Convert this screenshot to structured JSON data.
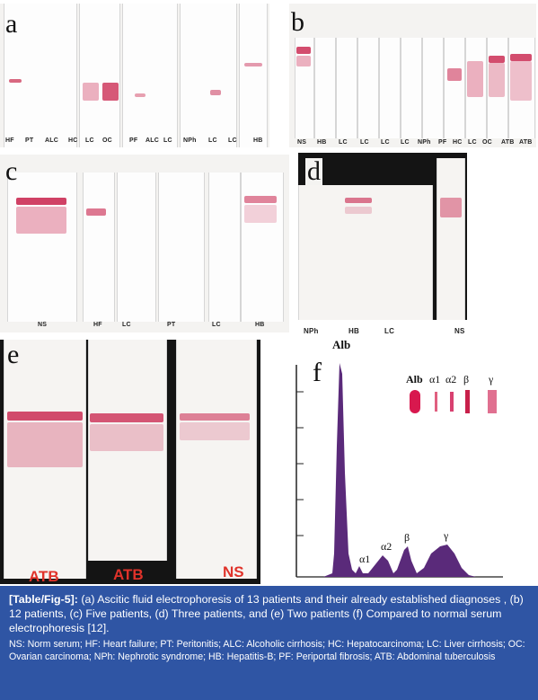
{
  "panels": {
    "a": {
      "letter": "a",
      "lanes": [
        "HF",
        "PT",
        "ALC",
        "HC",
        "LC",
        "OC",
        "PF",
        "ALC",
        "LC",
        "NPh",
        "LC",
        "LC",
        "HB"
      ]
    },
    "b": {
      "letter": "b",
      "lanes": [
        "NS",
        "HB",
        "LC",
        "LC",
        "LC",
        "LC",
        "NPh",
        "PF",
        "HC",
        "LC",
        "OC",
        "ATB",
        "ATB"
      ]
    },
    "c": {
      "letter": "c",
      "lanes": [
        "NS",
        "HF",
        "LC",
        "PT",
        "LC",
        "HB"
      ]
    },
    "d": {
      "letter": "d",
      "lanes": [
        "NPh",
        "HB",
        "LC",
        "NS"
      ]
    },
    "e": {
      "letter": "e",
      "lanes": [
        "ATB",
        "ATB",
        "NS"
      ]
    },
    "f": {
      "letter": "f",
      "peak_labels": [
        "Alb",
        "α1",
        "α2",
        "β",
        "γ"
      ],
      "legend_labels": [
        "Alb",
        "α1",
        "α2",
        "β",
        "γ"
      ]
    }
  },
  "caption": {
    "tag": "[Table/Fig-5]:",
    "text": " (a) Ascitic fluid electrophoresis of 13 patients and their already established diagnoses , (b) 12 patients, (c) Five patients, (d) Three patients, and (e) Two patients (f) Compared to normal serum electrophoresis [12].",
    "abbreviations": "NS: Norm serum; HF: Heart failure; PT: Peritonitis; ALC: Alcoholic cirrhosis; HC: Hepatocarcinoma; LC: Liver cirrhosis; OC: Ovarian carcinoma; NPh: Nephrotic syndrome; HB: Hepatitis-B; PF: Periportal fibrosis; ATB: Abdominal tuberculosis"
  },
  "colors": {
    "band": "#c8204a",
    "caption_bg": "#2f55a4",
    "curve": "#5a2a7a",
    "atb_label": "#e0322a"
  }
}
